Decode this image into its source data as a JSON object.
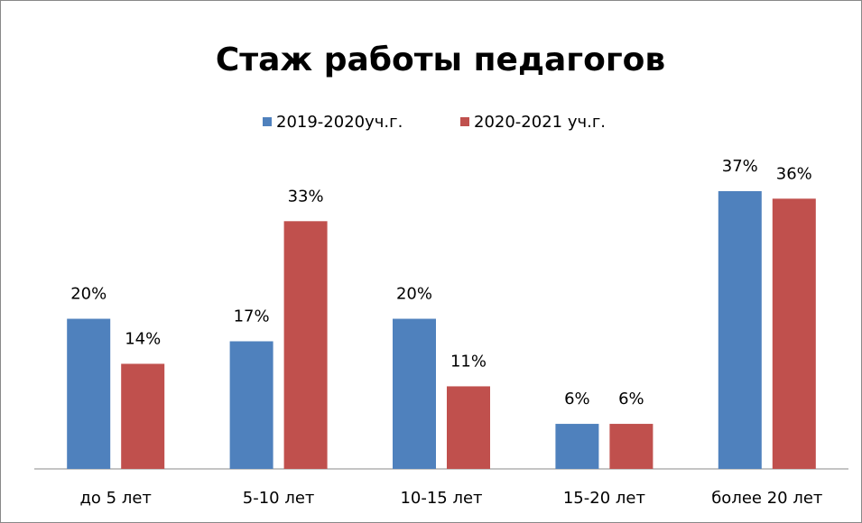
{
  "chart_data": {
    "type": "bar",
    "title": "Стаж работы педагогов",
    "categories": [
      "до 5 лет",
      "5-10 лет",
      "10-15 лет",
      "15-20 лет",
      "более 20 лет"
    ],
    "series": [
      {
        "name": "2019-2020уч.г.",
        "color": "#4f81bd",
        "values": [
          20,
          17,
          20,
          6,
          37
        ],
        "value_labels": [
          "20%",
          "17%",
          "20%",
          "6%",
          "37%"
        ]
      },
      {
        "name": "2020-2021 уч.г.",
        "color": "#c0504d",
        "values": [
          14,
          33,
          11,
          6,
          36
        ],
        "value_labels": [
          "14%",
          "33%",
          "11%",
          "6%",
          "36%"
        ]
      }
    ]
  }
}
